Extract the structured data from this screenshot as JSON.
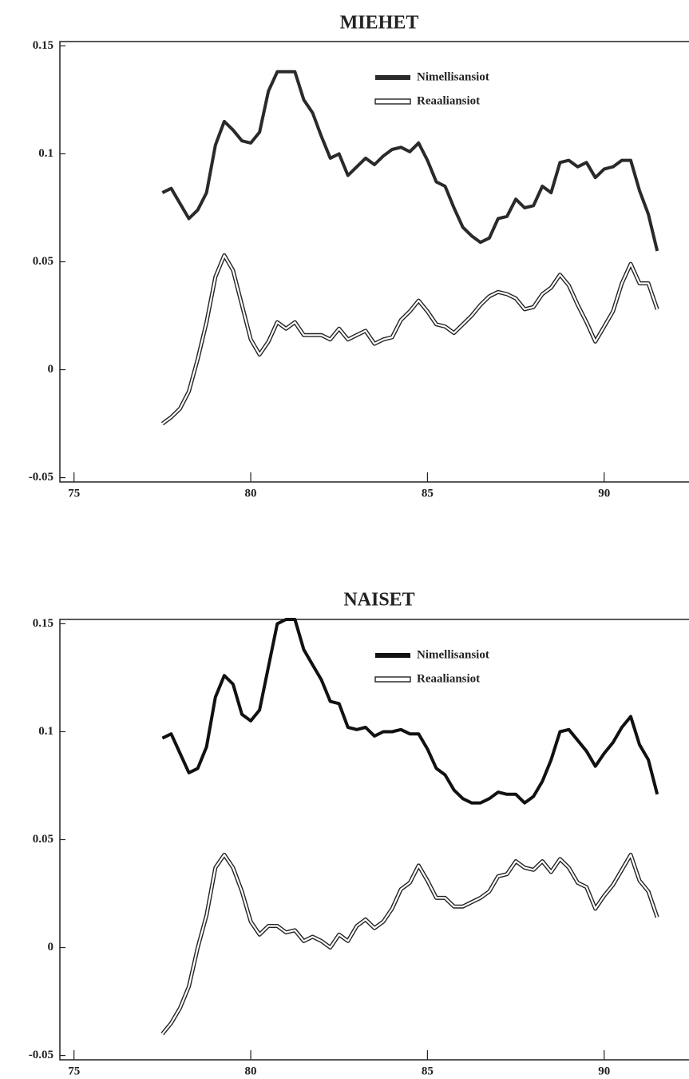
{
  "chart_data": [
    {
      "type": "line",
      "title": "MIEHET",
      "x": [
        77.5,
        77.75,
        78,
        78.25,
        78.5,
        78.75,
        79,
        79.25,
        79.5,
        79.75,
        80,
        80.25,
        80.5,
        80.75,
        81,
        81.25,
        81.5,
        81.75,
        82,
        82.25,
        82.5,
        82.75,
        83,
        83.25,
        83.5,
        83.75,
        84,
        84.25,
        84.5,
        84.75,
        85,
        85.25,
        85.5,
        85.75,
        86,
        86.25,
        86.5,
        86.75,
        87,
        87.25,
        87.5,
        87.75,
        88,
        88.25,
        88.5,
        88.75,
        89,
        89.25,
        89.5,
        89.75,
        90,
        90.25,
        90.5,
        90.75,
        91,
        91.25,
        91.5
      ],
      "series": [
        {
          "name": "Nimellisansiot",
          "color": "#2a2a2a",
          "values": [
            0.082,
            0.084,
            0.077,
            0.07,
            0.074,
            0.082,
            0.104,
            0.115,
            0.111,
            0.106,
            0.105,
            0.11,
            0.129,
            0.138,
            0.138,
            0.138,
            0.125,
            0.119,
            0.108,
            0.098,
            0.1,
            0.09,
            0.094,
            0.098,
            0.095,
            0.099,
            0.102,
            0.103,
            0.101,
            0.105,
            0.097,
            0.087,
            0.085,
            0.075,
            0.066,
            0.062,
            0.059,
            0.061,
            0.07,
            0.071,
            0.079,
            0.075,
            0.076,
            0.085,
            0.082,
            0.096,
            0.097,
            0.094,
            0.096,
            0.089,
            0.093,
            0.094,
            0.097,
            0.097,
            0.083,
            0.072,
            0.055
          ]
        },
        {
          "name": "Reaaliansiot",
          "color": "#ffffff",
          "values": [
            -0.025,
            -0.022,
            -0.018,
            -0.01,
            0.005,
            0.022,
            0.043,
            0.053,
            0.046,
            0.03,
            0.014,
            0.007,
            0.013,
            0.022,
            0.019,
            0.022,
            0.016,
            0.016,
            0.016,
            0.014,
            0.019,
            0.014,
            0.016,
            0.018,
            0.012,
            0.014,
            0.015,
            0.023,
            0.027,
            0.032,
            0.027,
            0.021,
            0.02,
            0.017,
            0.021,
            0.025,
            0.03,
            0.034,
            0.036,
            0.035,
            0.033,
            0.028,
            0.029,
            0.035,
            0.038,
            0.044,
            0.039,
            0.03,
            0.022,
            0.013,
            0.02,
            0.027,
            0.04,
            0.049,
            0.04,
            0.04,
            0.028
          ]
        }
      ],
      "xlim": [
        74.6,
        92.4
      ],
      "xticks": [
        75,
        80,
        85,
        90
      ],
      "ylim": [
        -0.052,
        0.152
      ],
      "yticks": [
        -0.05,
        0,
        0.05,
        0.1,
        0.15
      ],
      "legend": "upper center"
    },
    {
      "type": "line",
      "title": "NAISET",
      "x": [
        77.5,
        77.75,
        78,
        78.25,
        78.5,
        78.75,
        79,
        79.25,
        79.5,
        79.75,
        80,
        80.25,
        80.5,
        80.75,
        81,
        81.25,
        81.5,
        81.75,
        82,
        82.25,
        82.5,
        82.75,
        83,
        83.25,
        83.5,
        83.75,
        84,
        84.25,
        84.5,
        84.75,
        85,
        85.25,
        85.5,
        85.75,
        86,
        86.25,
        86.5,
        86.75,
        87,
        87.25,
        87.5,
        87.75,
        88,
        88.25,
        88.5,
        88.75,
        89,
        89.25,
        89.5,
        89.75,
        90,
        90.25,
        90.5,
        90.75,
        91,
        91.25,
        91.5
      ],
      "series": [
        {
          "name": "Nimellisansiot",
          "color": "#111111",
          "values": [
            0.097,
            0.099,
            0.09,
            0.081,
            0.083,
            0.093,
            0.116,
            0.126,
            0.122,
            0.108,
            0.105,
            0.11,
            0.13,
            0.15,
            0.152,
            0.152,
            0.138,
            0.131,
            0.124,
            0.114,
            0.113,
            0.102,
            0.101,
            0.102,
            0.098,
            0.1,
            0.1,
            0.101,
            0.099,
            0.099,
            0.092,
            0.083,
            0.08,
            0.073,
            0.069,
            0.067,
            0.067,
            0.069,
            0.072,
            0.071,
            0.071,
            0.067,
            0.07,
            0.077,
            0.087,
            0.1,
            0.101,
            0.096,
            0.091,
            0.084,
            0.09,
            0.095,
            0.102,
            0.107,
            0.094,
            0.087,
            0.071
          ]
        },
        {
          "name": "Reaaliansiot",
          "color": "#ffffff",
          "values": [
            -0.04,
            -0.035,
            -0.028,
            -0.018,
            0.0,
            0.015,
            0.037,
            0.043,
            0.037,
            0.026,
            0.012,
            0.006,
            0.01,
            0.01,
            0.007,
            0.008,
            0.003,
            0.005,
            0.003,
            0.0,
            0.006,
            0.003,
            0.01,
            0.013,
            0.009,
            0.012,
            0.018,
            0.027,
            0.03,
            0.038,
            0.031,
            0.023,
            0.023,
            0.019,
            0.019,
            0.021,
            0.023,
            0.026,
            0.033,
            0.034,
            0.04,
            0.037,
            0.036,
            0.04,
            0.035,
            0.041,
            0.037,
            0.03,
            0.028,
            0.018,
            0.024,
            0.029,
            0.036,
            0.043,
            0.031,
            0.026,
            0.014
          ]
        }
      ],
      "xlim": [
        74.6,
        92.4
      ],
      "xticks": [
        75,
        80,
        85,
        90
      ],
      "ylim": [
        -0.052,
        0.152
      ],
      "yticks": [
        -0.05,
        0,
        0.05,
        0.1,
        0.15
      ],
      "legend": "upper center"
    }
  ]
}
